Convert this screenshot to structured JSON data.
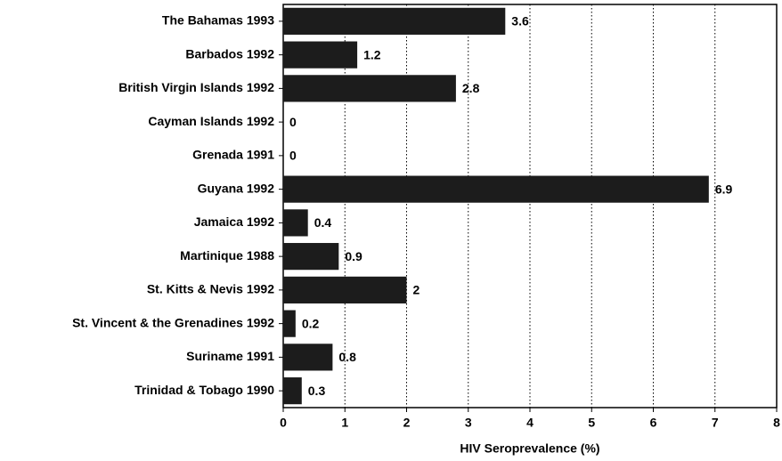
{
  "chart_data": {
    "type": "bar",
    "orientation": "horizontal",
    "categories": [
      "The Bahamas 1993",
      "Barbados 1992",
      "British Virgin Islands 1992",
      "Cayman Islands 1992",
      "Grenada 1991",
      "Guyana 1992",
      "Jamaica 1992",
      "Martinique 1988",
      "St. Kitts & Nevis 1992",
      "St. Vincent & the Grenadines 1992",
      "Suriname 1991",
      "Trinidad & Tobago 1990"
    ],
    "values": [
      3.6,
      1.2,
      2.8,
      0,
      0,
      6.9,
      0.4,
      0.9,
      2,
      0.2,
      0.8,
      0.3
    ],
    "color": "#1c1c1c",
    "xlabel": "HIV Seroprevalence (%)",
    "xlim": [
      0,
      8
    ],
    "xticks": [
      0,
      1,
      2,
      3,
      4,
      5,
      6,
      7,
      8
    ],
    "grid": true
  }
}
